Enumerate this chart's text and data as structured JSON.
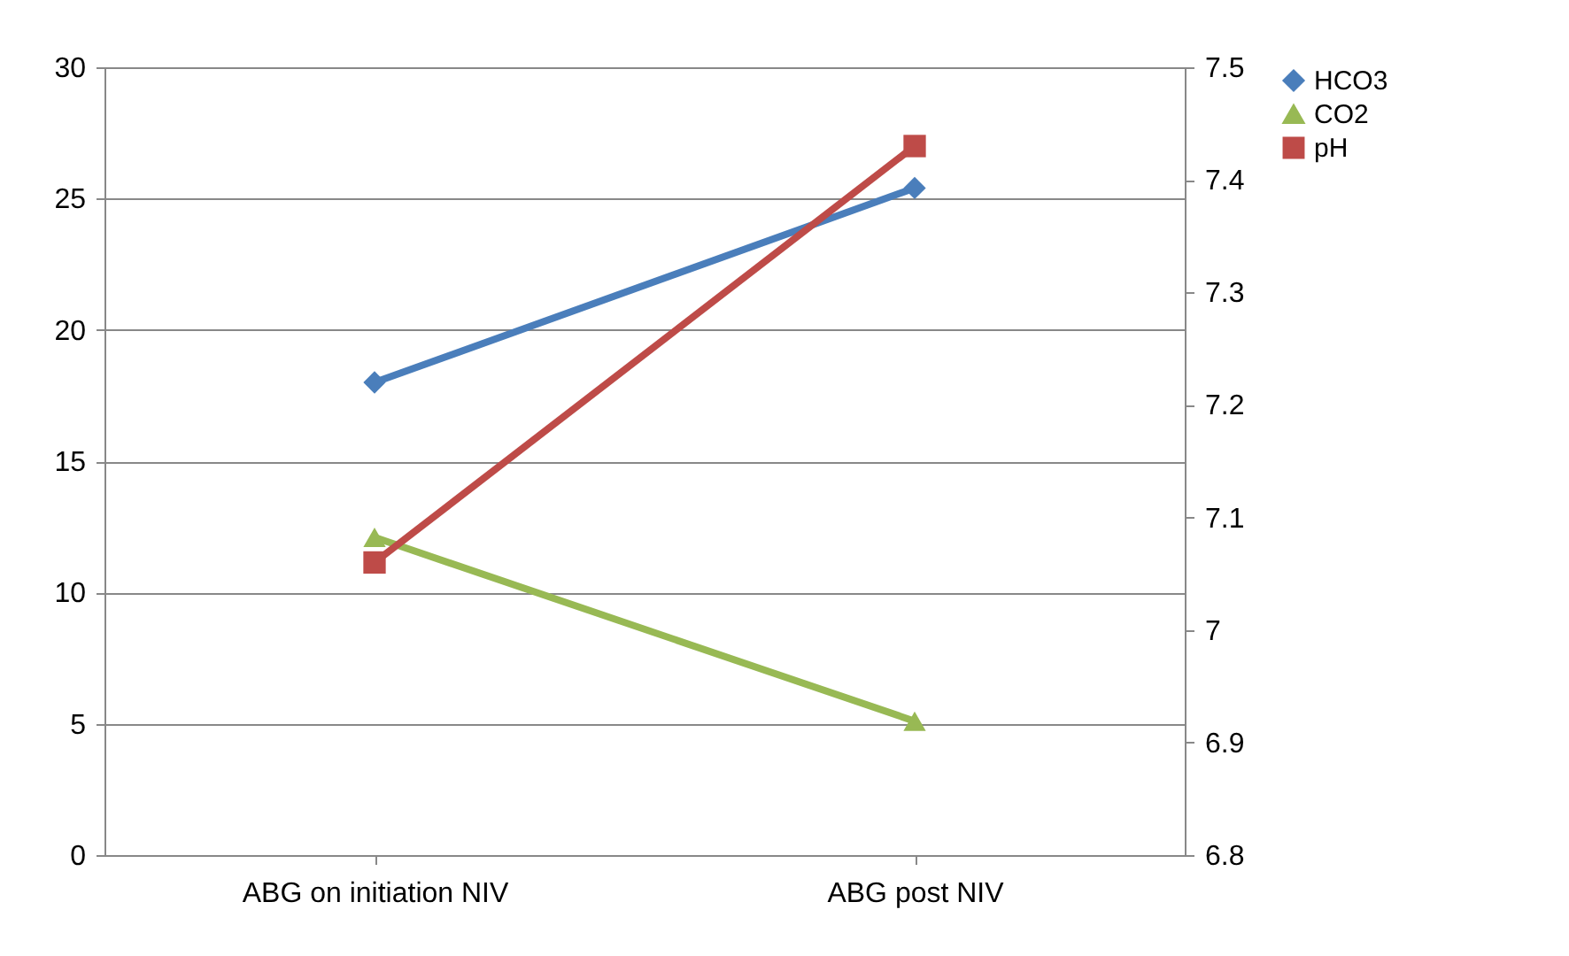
{
  "chart_data": {
    "type": "line",
    "categories": [
      "ABG on initiation NIV",
      "ABG post NIV"
    ],
    "series": [
      {
        "name": "HCO3",
        "color": "#4a7ebb",
        "values": [
          18.0,
          25.4
        ],
        "marker": "diamond"
      },
      {
        "name": "CO2",
        "color": "#98b954",
        "values": [
          12.1,
          5.1
        ],
        "marker": "triangle"
      },
      {
        "name": "pH",
        "color": "#be4b48",
        "values": [
          7.06,
          7.43
        ],
        "marker": "square",
        "axis": "y2"
      }
    ],
    "ylim": [
      0,
      30
    ],
    "yticks": [
      0,
      5,
      10,
      15,
      20,
      25,
      30
    ],
    "y2lim": [
      6.8,
      7.5
    ],
    "y2ticks": [
      {
        "value": 6.8,
        "label": "6.8"
      },
      {
        "value": 6.9,
        "label": "6.9"
      },
      {
        "value": 7.0,
        "label": "7"
      },
      {
        "value": 7.1,
        "label": "7.1"
      },
      {
        "value": 7.2,
        "label": "7.2"
      },
      {
        "value": 7.3,
        "label": "7.3"
      },
      {
        "value": 7.4,
        "label": "7.4"
      },
      {
        "value": 7.5,
        "label": "7.5"
      }
    ],
    "grid": "y",
    "legend": "right"
  }
}
